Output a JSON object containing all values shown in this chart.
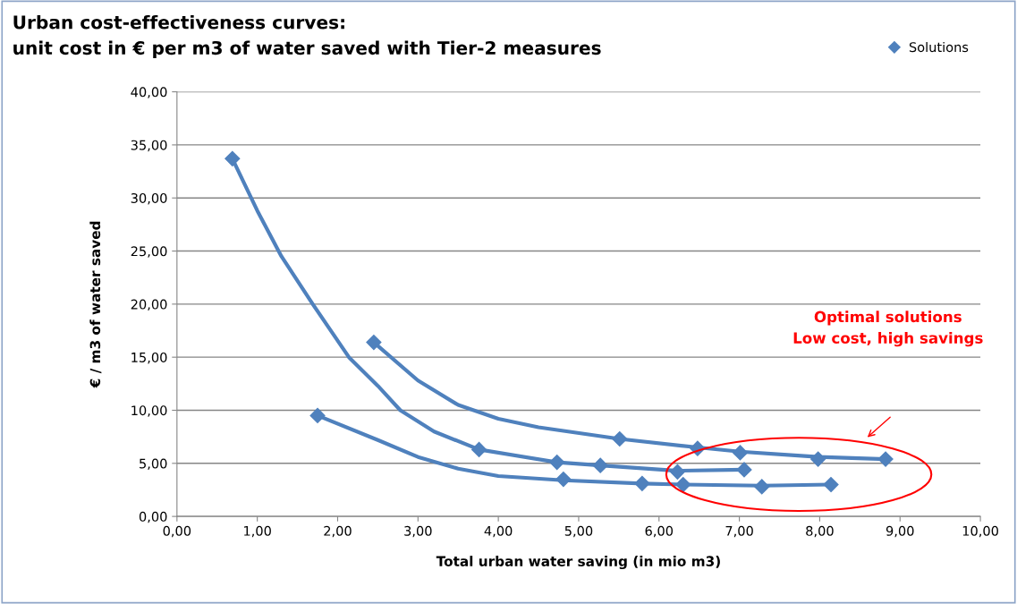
{
  "chart_data": {
    "type": "scatter",
    "title": "Urban cost-effectiveness curves:\nunit cost in € per m3 of water saved with Tier-2 measures",
    "xlabel": "Total urban water saving (in mio m3)",
    "ylabel": "€ / m3 of water saved",
    "series": [
      {
        "name": "Solutions",
        "color": "#4f81bd",
        "x": [
          0.69,
          3.76,
          4.73,
          5.27,
          6.23,
          7.06,
          2.45,
          5.51,
          6.48,
          7.01,
          7.98,
          8.82,
          1.75,
          4.81,
          5.79,
          6.3,
          7.28,
          8.14
        ],
        "values": [
          33.7,
          6.3,
          5.1,
          4.8,
          4.2,
          4.4,
          16.4,
          7.3,
          6.4,
          6.0,
          5.4,
          5.4,
          9.5,
          3.5,
          3.1,
          3.0,
          2.8,
          3.0
        ]
      },
      {
        "type": "line",
        "marker": "none",
        "color": "#4f81bd",
        "x": [
          0.69,
          1.0,
          1.3,
          1.69,
          2.14,
          2.5,
          2.78,
          3.2,
          3.76,
          4.73,
          5.27,
          6.23,
          7.06
        ],
        "values": [
          33.7,
          28.8,
          24.5,
          20.0,
          15.0,
          12.3,
          10.0,
          8.0,
          6.3,
          5.1,
          4.8,
          4.3,
          4.4
        ]
      },
      {
        "type": "line",
        "marker": "none",
        "color": "#4f81bd",
        "x": [
          2.45,
          3.0,
          3.5,
          4.0,
          4.5,
          5.51,
          6.48,
          7.01,
          7.98,
          8.82
        ],
        "values": [
          16.4,
          12.8,
          10.5,
          9.2,
          8.4,
          7.3,
          6.5,
          6.1,
          5.6,
          5.4
        ]
      },
      {
        "type": "line",
        "marker": "none",
        "color": "#4f81bd",
        "x": [
          1.75,
          2.5,
          3.0,
          3.5,
          4.0,
          4.81,
          5.79,
          6.3,
          7.28,
          8.14
        ],
        "values": [
          9.5,
          7.2,
          5.6,
          4.5,
          3.8,
          3.4,
          3.1,
          3.0,
          2.9,
          3.0
        ]
      }
    ],
    "xlim": [
      0,
      10
    ],
    "ylim": [
      0,
      40
    ],
    "xticks": [
      {
        "value": 0,
        "label": "0,00"
      },
      {
        "value": 1,
        "label": "1,00"
      },
      {
        "value": 2,
        "label": "2,00"
      },
      {
        "value": 3,
        "label": "3,00"
      },
      {
        "value": 4,
        "label": "4,00"
      },
      {
        "value": 5,
        "label": "5,00"
      },
      {
        "value": 6,
        "label": "6,00"
      },
      {
        "value": 7,
        "label": "7,00"
      },
      {
        "value": 8,
        "label": "8,00"
      },
      {
        "value": 9,
        "label": "9,00"
      },
      {
        "value": 10,
        "label": "10,00"
      }
    ],
    "yticks": [
      {
        "value": 0,
        "label": "0,00"
      },
      {
        "value": 5,
        "label": "5,00"
      },
      {
        "value": 10,
        "label": "10,00"
      },
      {
        "value": 15,
        "label": "15,00"
      },
      {
        "value": 20,
        "label": "20,00"
      },
      {
        "value": 25,
        "label": "25,00"
      },
      {
        "value": 30,
        "label": "30,00"
      },
      {
        "value": 35,
        "label": "35,00"
      },
      {
        "value": 40,
        "label": "40,00"
      }
    ],
    "grid": "y",
    "legend": "top right",
    "marker": "diamond",
    "line_style": "solid",
    "annotations": [
      "Optimal solutions\nLow cost, high savings"
    ]
  }
}
